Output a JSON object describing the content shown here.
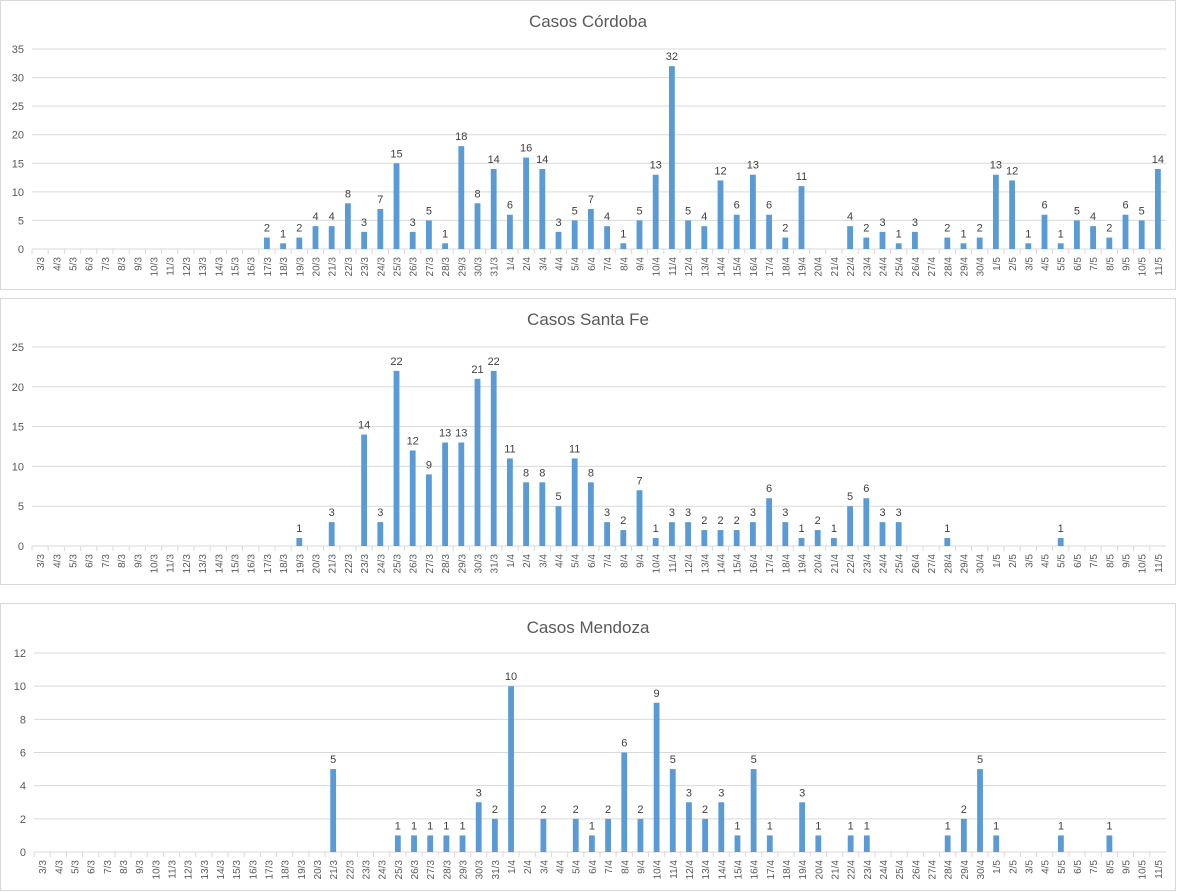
{
  "colors": {
    "bar": "#5b9bd5",
    "grid": "#d9d9d9",
    "axis_text": "#595959",
    "label_text": "#404040"
  },
  "chart_data": [
    {
      "type": "bar",
      "title": "Casos Córdoba",
      "xlabel": "",
      "ylabel": "",
      "ylim": [
        0,
        35
      ],
      "yticks": [
        0,
        5,
        10,
        15,
        20,
        25,
        30,
        35
      ],
      "grid": true,
      "legend": "none",
      "categories": [
        "3/3",
        "4/3",
        "5/3",
        "6/3",
        "7/3",
        "8/3",
        "9/3",
        "10/3",
        "11/3",
        "12/3",
        "13/3",
        "14/3",
        "15/3",
        "16/3",
        "17/3",
        "18/3",
        "19/3",
        "20/3",
        "21/3",
        "22/3",
        "23/3",
        "24/3",
        "25/3",
        "26/3",
        "27/3",
        "28/3",
        "29/3",
        "30/3",
        "31/3",
        "1/4",
        "2/4",
        "3/4",
        "4/4",
        "5/4",
        "6/4",
        "7/4",
        "8/4",
        "9/4",
        "10/4",
        "11/4",
        "12/4",
        "13/4",
        "14/4",
        "15/4",
        "16/4",
        "17/4",
        "18/4",
        "19/4",
        "20/4",
        "21/4",
        "22/4",
        "23/4",
        "24/4",
        "25/4",
        "26/4",
        "27/4",
        "28/4",
        "29/4",
        "30/4",
        "1/5",
        "2/5",
        "3/5",
        "4/5",
        "5/5",
        "6/5",
        "7/5",
        "8/5",
        "9/5",
        "10/5",
        "11/5"
      ],
      "values": [
        0,
        0,
        0,
        0,
        0,
        0,
        0,
        0,
        0,
        0,
        0,
        0,
        0,
        0,
        2,
        1,
        2,
        4,
        4,
        8,
        3,
        7,
        15,
        3,
        5,
        1,
        18,
        8,
        14,
        6,
        16,
        14,
        3,
        5,
        7,
        4,
        1,
        5,
        13,
        32,
        5,
        4,
        12,
        6,
        13,
        6,
        2,
        11,
        0,
        0,
        4,
        2,
        3,
        1,
        3,
        0,
        2,
        1,
        2,
        13,
        12,
        1,
        6,
        1,
        5,
        4,
        2,
        6,
        5,
        14
      ]
    },
    {
      "type": "bar",
      "title": "Casos Santa Fe",
      "xlabel": "",
      "ylabel": "",
      "ylim": [
        0,
        25
      ],
      "yticks": [
        0,
        5,
        10,
        15,
        20,
        25
      ],
      "grid": true,
      "legend": "none",
      "categories": [
        "3/3",
        "4/3",
        "5/3",
        "6/3",
        "7/3",
        "8/3",
        "9/3",
        "10/3",
        "11/3",
        "12/3",
        "13/3",
        "14/3",
        "15/3",
        "16/3",
        "17/3",
        "18/3",
        "19/3",
        "20/3",
        "21/3",
        "22/3",
        "23/3",
        "24/3",
        "25/3",
        "26/3",
        "27/3",
        "28/3",
        "29/3",
        "30/3",
        "31/3",
        "1/4",
        "2/4",
        "3/4",
        "4/4",
        "5/4",
        "6/4",
        "7/4",
        "8/4",
        "9/4",
        "10/4",
        "11/4",
        "12/4",
        "13/4",
        "14/4",
        "15/4",
        "16/4",
        "17/4",
        "18/4",
        "19/4",
        "20/4",
        "21/4",
        "22/4",
        "23/4",
        "24/4",
        "25/4",
        "26/4",
        "27/4",
        "28/4",
        "29/4",
        "30/4",
        "1/5",
        "2/5",
        "3/5",
        "4/5",
        "5/5",
        "6/5",
        "7/5",
        "8/5",
        "9/5",
        "10/5",
        "11/5"
      ],
      "values": [
        0,
        0,
        0,
        0,
        0,
        0,
        0,
        0,
        0,
        0,
        0,
        0,
        0,
        0,
        0,
        0,
        1,
        0,
        3,
        0,
        14,
        3,
        22,
        12,
        9,
        13,
        13,
        21,
        22,
        11,
        8,
        8,
        5,
        11,
        8,
        3,
        2,
        7,
        1,
        3,
        3,
        2,
        2,
        2,
        3,
        6,
        3,
        1,
        2,
        1,
        5,
        6,
        3,
        3,
        0,
        0,
        1,
        0,
        0,
        0,
        0,
        0,
        0,
        1,
        0,
        0,
        0,
        0,
        0,
        0
      ]
    },
    {
      "type": "bar",
      "title": "Casos Mendoza",
      "xlabel": "",
      "ylabel": "",
      "ylim": [
        0,
        12
      ],
      "yticks": [
        0,
        2,
        4,
        6,
        8,
        10,
        12
      ],
      "grid": true,
      "legend": "none",
      "categories": [
        "3/3",
        "4/3",
        "5/3",
        "6/3",
        "7/3",
        "8/3",
        "9/3",
        "10/3",
        "11/3",
        "12/3",
        "13/3",
        "14/3",
        "15/3",
        "16/3",
        "17/3",
        "18/3",
        "19/3",
        "20/3",
        "21/3",
        "22/3",
        "23/3",
        "24/3",
        "25/3",
        "26/3",
        "27/3",
        "28/3",
        "29/3",
        "30/3",
        "31/3",
        "1/4",
        "2/4",
        "3/4",
        "4/4",
        "5/4",
        "6/4",
        "7/4",
        "8/4",
        "9/4",
        "10/4",
        "11/4",
        "12/4",
        "13/4",
        "14/4",
        "15/4",
        "16/4",
        "17/4",
        "18/4",
        "19/4",
        "20/4",
        "21/4",
        "22/4",
        "23/4",
        "24/4",
        "25/4",
        "26/4",
        "27/4",
        "28/4",
        "29/4",
        "30/4",
        "1/5",
        "2/5",
        "3/5",
        "4/5",
        "5/5",
        "6/5",
        "7/5",
        "8/5",
        "9/5",
        "10/5",
        "11/5"
      ],
      "values": [
        0,
        0,
        0,
        0,
        0,
        0,
        0,
        0,
        0,
        0,
        0,
        0,
        0,
        0,
        0,
        0,
        0,
        0,
        5,
        0,
        0,
        0,
        1,
        1,
        1,
        1,
        1,
        3,
        2,
        10,
        0,
        2,
        0,
        2,
        1,
        2,
        6,
        2,
        9,
        5,
        3,
        2,
        3,
        1,
        5,
        1,
        0,
        3,
        1,
        0,
        1,
        1,
        0,
        0,
        0,
        0,
        1,
        2,
        5,
        1,
        0,
        0,
        0,
        1,
        0,
        0,
        1,
        0,
        0,
        0
      ]
    }
  ]
}
